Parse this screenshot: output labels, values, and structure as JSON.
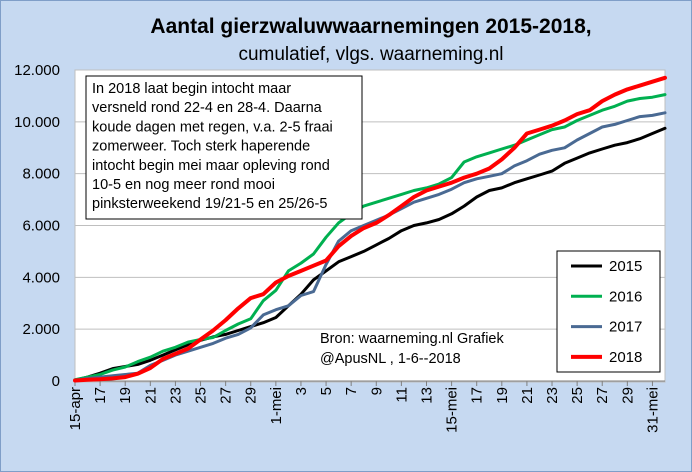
{
  "chart_data": {
    "type": "line",
    "title": "Aantal gierzwaluwwaarnemingen 2015-2018,",
    "subtitle": "cumulatief, vlgs. waarneming.nl",
    "xlabel": "",
    "ylabel": "",
    "ylim": [
      0,
      12000
    ],
    "yticks": [
      0,
      2000,
      4000,
      6000,
      8000,
      10000,
      12000
    ],
    "ytick_labels": [
      "0",
      "2.000",
      "4.000",
      "6.000",
      "8.000",
      "10.000",
      "12.000"
    ],
    "x_start_label": "15-apr",
    "x_end_label": "31-mei",
    "x_tick_labels": [
      "15-apr",
      "17",
      "19",
      "21",
      "23",
      "25",
      "27",
      "29",
      "1-mei",
      "3",
      "5",
      "7",
      "9",
      "11",
      "13",
      "15-mei",
      "17",
      "19",
      "21",
      "23",
      "25",
      "27",
      "29",
      "31-mei"
    ],
    "x_tick_days": [
      0,
      2,
      4,
      6,
      8,
      10,
      12,
      14,
      16,
      18,
      20,
      22,
      24,
      26,
      28,
      30,
      32,
      34,
      36,
      38,
      40,
      42,
      44,
      46
    ],
    "grid": "horizontal",
    "legend_position": "bottom-right",
    "annotation": "In 2018 laat begin intocht maar versneld rond 22-4  en 28-4. Daarna koude dagen met regen, v.a. 2-5 fraai zomerweer. Toch sterk haperende intocht begin mei maar opleving rond 10-5 en nog meer rond mooi pinksterweekend 19/21-5 en 25/26-5",
    "annotation_lines": [
      "In 2018 laat begin intocht maar",
      "versneld rond 22-4  en 28-4. Daarna",
      "koude dagen met regen, v.a. 2-5 fraai",
      "zomerweer. Toch sterk haperende",
      "intocht begin mei maar opleving rond",
      "10-5 en nog meer rond mooi",
      "pinksterweekend 19/21-5 en 25/26-5"
    ],
    "source_lines": [
      "Bron: waarneming.nl Grafiek",
      "@ApusNL , 1-6--2018"
    ],
    "series": [
      {
        "name": "2015",
        "color": "#000000",
        "values": [
          30,
          150,
          300,
          480,
          560,
          640,
          800,
          1000,
          1200,
          1400,
          1570,
          1700,
          1800,
          1950,
          2100,
          2250,
          2450,
          2900,
          3350,
          3900,
          4250,
          4600,
          4800,
          5000,
          5250,
          5500,
          5800,
          6000,
          6100,
          6230,
          6450,
          6750,
          7100,
          7350,
          7450,
          7650,
          7800,
          7950,
          8100,
          8400,
          8600,
          8800,
          8950,
          9100,
          9200,
          9350,
          9550,
          9750
        ]
      },
      {
        "name": "2016",
        "color": "#00b050",
        "values": [
          50,
          150,
          250,
          420,
          540,
          750,
          920,
          1150,
          1300,
          1500,
          1600,
          1680,
          1950,
          2200,
          2400,
          3100,
          3500,
          4250,
          4550,
          4900,
          5550,
          6100,
          6450,
          6750,
          6900,
          7050,
          7200,
          7350,
          7450,
          7600,
          7850,
          8450,
          8650,
          8800,
          8950,
          9100,
          9300,
          9500,
          9700,
          9800,
          10050,
          10250,
          10450,
          10600,
          10800,
          10900,
          10950,
          11050
        ]
      },
      {
        "name": "2017",
        "color": "#4a6a93",
        "values": [
          30,
          100,
          150,
          200,
          250,
          300,
          600,
          800,
          1000,
          1150,
          1300,
          1450,
          1650,
          1800,
          2050,
          2550,
          2750,
          2900,
          3300,
          3450,
          4500,
          5400,
          5800,
          6000,
          6200,
          6400,
          6650,
          6900,
          7050,
          7200,
          7400,
          7650,
          7800,
          7900,
          8000,
          8300,
          8500,
          8750,
          8900,
          9000,
          9300,
          9550,
          9800,
          9900,
          10050,
          10200,
          10250,
          10350
        ]
      },
      {
        "name": "2018",
        "color": "#ff0000",
        "values": [
          20,
          50,
          70,
          100,
          150,
          280,
          500,
          850,
          1050,
          1250,
          1600,
          1950,
          2350,
          2800,
          3200,
          3350,
          3800,
          4050,
          4250,
          4450,
          4650,
          5200,
          5600,
          5900,
          6100,
          6400,
          6750,
          7100,
          7350,
          7500,
          7650,
          7850,
          8000,
          8200,
          8550,
          9000,
          9550,
          9700,
          9850,
          10050,
          10300,
          10450,
          10800,
          11050,
          11250,
          11400,
          11550,
          11700
        ]
      }
    ]
  }
}
